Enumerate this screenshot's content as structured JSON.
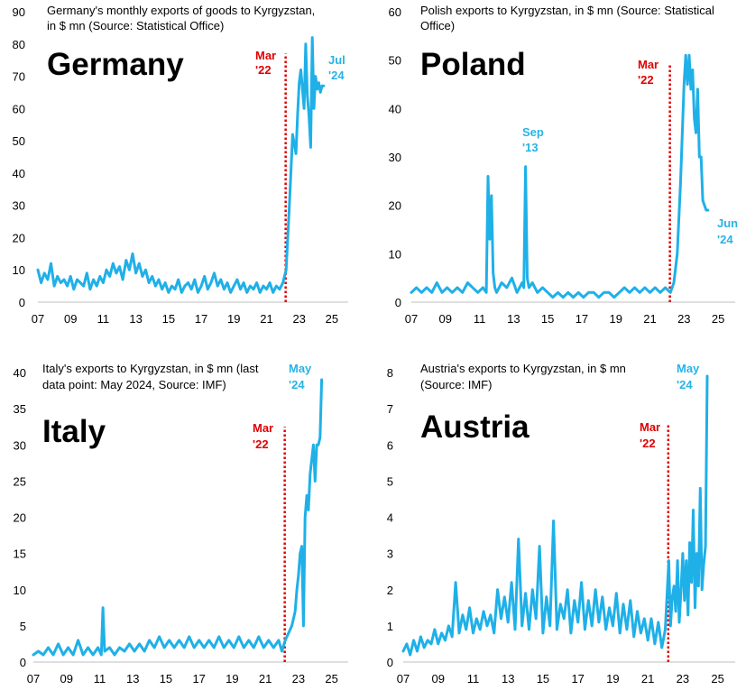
{
  "chart_data": [
    {
      "id": "germany",
      "type": "line",
      "label": "Germany",
      "subtitle_lines": [
        "Germany's monthly exports of goods to Kyrgyzstan,",
        "in $ mn (Source: Statistical Office)"
      ],
      "ylim": [
        0,
        90
      ],
      "yticks": [
        0,
        10,
        20,
        30,
        40,
        50,
        60,
        70,
        80,
        90
      ],
      "xlim": [
        7,
        26
      ],
      "xticks": [
        "07",
        "09",
        "11",
        "13",
        "15",
        "17",
        "19",
        "21",
        "23",
        "25"
      ],
      "marker": {
        "x": 22.17,
        "line1": "Mar",
        "line2": "'22"
      },
      "end_label": {
        "line1": "Jul",
        "line2": "'24"
      },
      "x": [
        7.0,
        7.2,
        7.4,
        7.6,
        7.8,
        8.0,
        8.2,
        8.4,
        8.6,
        8.8,
        9.0,
        9.2,
        9.4,
        9.6,
        9.8,
        10.0,
        10.2,
        10.4,
        10.6,
        10.8,
        11.0,
        11.2,
        11.4,
        11.6,
        11.8,
        12.0,
        12.2,
        12.4,
        12.6,
        12.8,
        13.0,
        13.2,
        13.4,
        13.6,
        13.8,
        14.0,
        14.2,
        14.4,
        14.6,
        14.8,
        15.0,
        15.2,
        15.4,
        15.6,
        15.8,
        16.0,
        16.2,
        16.4,
        16.6,
        16.8,
        17.0,
        17.2,
        17.4,
        17.6,
        17.8,
        18.0,
        18.2,
        18.4,
        18.6,
        18.8,
        19.0,
        19.2,
        19.4,
        19.6,
        19.8,
        20.0,
        20.2,
        20.4,
        20.6,
        20.8,
        21.0,
        21.2,
        21.4,
        21.6,
        21.8,
        22.0,
        22.2,
        22.4,
        22.6,
        22.8,
        22.9,
        23.0,
        23.1,
        23.2,
        23.3,
        23.4,
        23.5,
        23.6,
        23.7,
        23.8,
        23.9,
        24.0,
        24.1,
        24.2,
        24.3,
        24.4,
        24.5
      ],
      "values": [
        10,
        6,
        9,
        7,
        12,
        5,
        8,
        6,
        7,
        5,
        8,
        4,
        7,
        6,
        5,
        9,
        4,
        7,
        5,
        8,
        6,
        10,
        8,
        12,
        9,
        11,
        7,
        13,
        10,
        15,
        9,
        12,
        8,
        10,
        6,
        8,
        5,
        7,
        4,
        6,
        3,
        5,
        4,
        7,
        3,
        5,
        6,
        4,
        7,
        3,
        5,
        8,
        4,
        6,
        9,
        5,
        7,
        4,
        6,
        3,
        5,
        7,
        4,
        6,
        3,
        5,
        4,
        6,
        3,
        5,
        4,
        6,
        3,
        5,
        4,
        6,
        10,
        30,
        52,
        46,
        58,
        68,
        72,
        66,
        60,
        80,
        64,
        58,
        48,
        82,
        60,
        70,
        66,
        68,
        65,
        67,
        67
      ]
    },
    {
      "id": "poland",
      "type": "line",
      "label": "Poland",
      "subtitle_lines": [
        "Polish exports to Kyrgyzstan, in $ mn (Source: Statistical",
        "Office)"
      ],
      "ylim": [
        0,
        60
      ],
      "yticks": [
        0,
        10,
        20,
        30,
        40,
        50,
        60
      ],
      "xlim": [
        7,
        26
      ],
      "xticks": [
        "07",
        "09",
        "11",
        "13",
        "15",
        "17",
        "19",
        "21",
        "23",
        "25"
      ],
      "marker": {
        "x": 22.17,
        "line1": "Mar",
        "line2": "'22"
      },
      "end_label": {
        "line1": "Jun",
        "line2": "'24"
      },
      "peak_label": {
        "x": 13.7,
        "line1": "Sep",
        "line2": "'13"
      },
      "x": [
        7.0,
        7.3,
        7.6,
        7.9,
        8.2,
        8.5,
        8.8,
        9.1,
        9.4,
        9.7,
        10.0,
        10.3,
        10.6,
        10.9,
        11.2,
        11.4,
        11.5,
        11.6,
        11.7,
        11.8,
        11.9,
        12.0,
        12.3,
        12.6,
        12.9,
        13.2,
        13.5,
        13.6,
        13.7,
        13.8,
        13.9,
        14.1,
        14.4,
        14.7,
        15.0,
        15.3,
        15.6,
        15.9,
        16.2,
        16.5,
        16.8,
        17.1,
        17.4,
        17.7,
        18.0,
        18.3,
        18.6,
        18.9,
        19.2,
        19.5,
        19.8,
        20.1,
        20.4,
        20.7,
        21.0,
        21.3,
        21.6,
        21.9,
        22.2,
        22.4,
        22.6,
        22.8,
        23.0,
        23.1,
        23.2,
        23.3,
        23.4,
        23.5,
        23.6,
        23.7,
        23.8,
        23.9,
        24.0,
        24.1,
        24.2,
        24.3,
        24.4
      ],
      "values": [
        2,
        3,
        2,
        3,
        2,
        4,
        2,
        3,
        2,
        3,
        2,
        4,
        3,
        2,
        3,
        2,
        26,
        13,
        22,
        6,
        3,
        2,
        4,
        3,
        5,
        2,
        4,
        3,
        28,
        5,
        3,
        4,
        2,
        3,
        2,
        1,
        2,
        1,
        2,
        1,
        2,
        1,
        2,
        2,
        1,
        2,
        2,
        1,
        2,
        3,
        2,
        3,
        2,
        3,
        2,
        3,
        2,
        3,
        2,
        4,
        10,
        25,
        45,
        51,
        45,
        51,
        44,
        48,
        38,
        35,
        44,
        30,
        30,
        21,
        20,
        19,
        19
      ]
    },
    {
      "id": "italy",
      "type": "line",
      "label": "Italy",
      "subtitle_lines": [
        "Italy's exports to Kyrgyzstan, in $ mn (last",
        "data point: May 2024, Source: IMF)"
      ],
      "ylim": [
        0,
        40
      ],
      "yticks": [
        0,
        5,
        10,
        15,
        20,
        25,
        30,
        35,
        40
      ],
      "xlim": [
        7,
        26
      ],
      "xticks": [
        "07",
        "09",
        "11",
        "13",
        "15",
        "17",
        "19",
        "21",
        "23",
        "25"
      ],
      "marker": {
        "x": 22.17,
        "line1": "Mar",
        "line2": "'22"
      },
      "end_label": {
        "line1": "May",
        "line2": "'24"
      },
      "x": [
        7.0,
        7.3,
        7.6,
        7.9,
        8.2,
        8.5,
        8.8,
        9.1,
        9.4,
        9.7,
        10.0,
        10.3,
        10.6,
        10.9,
        11.1,
        11.2,
        11.3,
        11.6,
        11.9,
        12.2,
        12.5,
        12.8,
        13.1,
        13.4,
        13.7,
        14.0,
        14.3,
        14.6,
        14.9,
        15.2,
        15.5,
        15.8,
        16.1,
        16.4,
        16.7,
        17.0,
        17.3,
        17.6,
        17.9,
        18.2,
        18.5,
        18.8,
        19.1,
        19.4,
        19.7,
        20.0,
        20.3,
        20.6,
        20.9,
        21.2,
        21.5,
        21.8,
        22.0,
        22.2,
        22.4,
        22.6,
        22.8,
        22.9,
        23.0,
        23.1,
        23.2,
        23.3,
        23.4,
        23.5,
        23.6,
        23.7,
        23.8,
        23.9,
        24.0,
        24.1,
        24.2,
        24.3,
        24.4
      ],
      "values": [
        1,
        1.5,
        1,
        2,
        1,
        2.5,
        1,
        2,
        1,
        3,
        1,
        2,
        1,
        2,
        1,
        7.5,
        1.5,
        2,
        1,
        2,
        1.5,
        2.5,
        1.5,
        2.5,
        1.5,
        3,
        2,
        3.5,
        2,
        3,
        2,
        3,
        2,
        3.5,
        2,
        3,
        2,
        3,
        2,
        3.5,
        2,
        3,
        2,
        3.5,
        2,
        3,
        2,
        3.5,
        2,
        3,
        2,
        3,
        1.5,
        3,
        4,
        5,
        7,
        10,
        12,
        15,
        16,
        5,
        20,
        23,
        21,
        26,
        28,
        30,
        25,
        30,
        30,
        31,
        39
      ]
    },
    {
      "id": "austria",
      "type": "line",
      "label": "Austria",
      "subtitle_lines": [
        "Austria's exports to Kyrgyzstan, in $ mn",
        "(Source: IMF)"
      ],
      "ylim": [
        0,
        8
      ],
      "yticks": [
        0,
        1,
        2,
        3,
        4,
        5,
        6,
        7,
        8
      ],
      "xlim": [
        7,
        26
      ],
      "xticks": [
        "07",
        "09",
        "11",
        "13",
        "15",
        "17",
        "19",
        "21",
        "23",
        "25"
      ],
      "marker": {
        "x": 22.17,
        "line1": "Mar",
        "line2": "'22"
      },
      "end_label": {
        "line1": "May",
        "line2": "'24"
      },
      "x": [
        7.0,
        7.2,
        7.4,
        7.6,
        7.8,
        8.0,
        8.2,
        8.4,
        8.6,
        8.8,
        9.0,
        9.2,
        9.4,
        9.6,
        9.8,
        10.0,
        10.2,
        10.4,
        10.6,
        10.8,
        11.0,
        11.2,
        11.4,
        11.6,
        11.8,
        12.0,
        12.2,
        12.4,
        12.6,
        12.8,
        13.0,
        13.2,
        13.4,
        13.6,
        13.8,
        14.0,
        14.2,
        14.4,
        14.6,
        14.8,
        15.0,
        15.2,
        15.4,
        15.6,
        15.8,
        16.0,
        16.2,
        16.4,
        16.6,
        16.8,
        17.0,
        17.2,
        17.4,
        17.6,
        17.8,
        18.0,
        18.2,
        18.4,
        18.6,
        18.8,
        19.0,
        19.2,
        19.4,
        19.6,
        19.8,
        20.0,
        20.2,
        20.4,
        20.6,
        20.8,
        21.0,
        21.2,
        21.4,
        21.6,
        21.8,
        22.0,
        22.2,
        22.3,
        22.4,
        22.5,
        22.6,
        22.7,
        22.8,
        22.9,
        23.0,
        23.1,
        23.2,
        23.3,
        23.4,
        23.5,
        23.6,
        23.7,
        23.8,
        23.9,
        24.0,
        24.1,
        24.2,
        24.3,
        24.4
      ],
      "values": [
        0.3,
        0.5,
        0.2,
        0.6,
        0.3,
        0.7,
        0.4,
        0.6,
        0.5,
        0.9,
        0.5,
        0.8,
        0.6,
        1.0,
        0.7,
        2.2,
        0.8,
        1.3,
        0.9,
        1.5,
        0.8,
        1.2,
        0.9,
        1.4,
        1.0,
        1.3,
        0.8,
        2.0,
        1.2,
        1.8,
        1.1,
        2.2,
        0.9,
        3.4,
        1.0,
        1.9,
        0.9,
        2.0,
        1.2,
        3.2,
        0.8,
        1.8,
        1.0,
        3.9,
        0.9,
        1.6,
        1.2,
        2.0,
        0.8,
        1.7,
        1.1,
        2.2,
        0.9,
        1.7,
        1.0,
        2.0,
        1.1,
        1.8,
        0.9,
        1.5,
        1.0,
        1.9,
        0.8,
        1.6,
        0.9,
        1.7,
        0.7,
        1.4,
        0.8,
        1.2,
        0.6,
        1.2,
        0.5,
        1.1,
        0.4,
        0.9,
        2.8,
        1.0,
        1.8,
        2.1,
        1.4,
        2.8,
        1.1,
        2.0,
        3.0,
        1.7,
        2.8,
        1.3,
        3.3,
        2.2,
        4.2,
        1.5,
        3.0,
        2.1,
        4.8,
        2.0,
        2.7,
        3.2,
        7.9
      ]
    }
  ]
}
